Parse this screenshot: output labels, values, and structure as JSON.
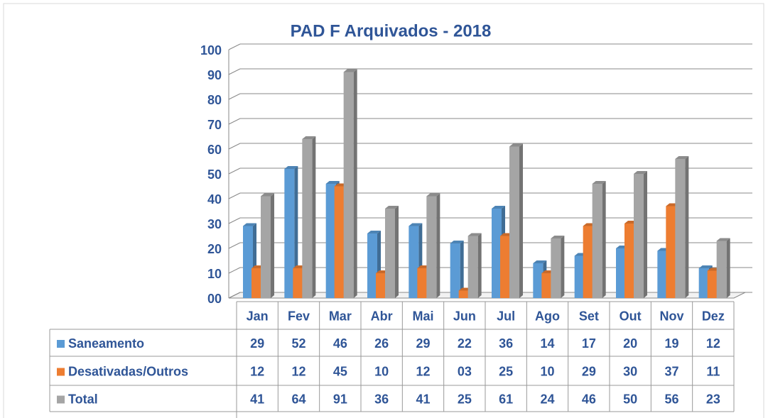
{
  "chart_data": {
    "type": "bar3d",
    "title": "PAD F Arquivados - 2018",
    "categories": [
      "Jan",
      "Fev",
      "Mar",
      "Abr",
      "Mai",
      "Jun",
      "Jul",
      "Ago",
      "Set",
      "Out",
      "Nov",
      "Dez"
    ],
    "series": [
      {
        "name": "Saneamento",
        "color": "#5b9bd5",
        "values": [
          29,
          52,
          46,
          26,
          29,
          22,
          36,
          14,
          17,
          20,
          19,
          12
        ]
      },
      {
        "name": "Desativadas/Outros",
        "color": "#ed7d31",
        "values": [
          12,
          12,
          45,
          10,
          12,
          3,
          25,
          10,
          29,
          30,
          37,
          11
        ],
        "value_labels": [
          "12",
          "12",
          "45",
          "10",
          "12",
          "03",
          "25",
          "10",
          "29",
          "30",
          "37",
          "11"
        ]
      },
      {
        "name": "Total",
        "color": "#a5a5a5",
        "values": [
          41,
          64,
          91,
          36,
          41,
          25,
          61,
          24,
          46,
          50,
          56,
          23
        ]
      }
    ],
    "ylim": [
      0,
      100
    ],
    "yticks": [
      {
        "value": 0,
        "label": "00"
      },
      10,
      20,
      30,
      40,
      50,
      60,
      70,
      80,
      90,
      100
    ],
    "grid": true,
    "data_table": true
  }
}
